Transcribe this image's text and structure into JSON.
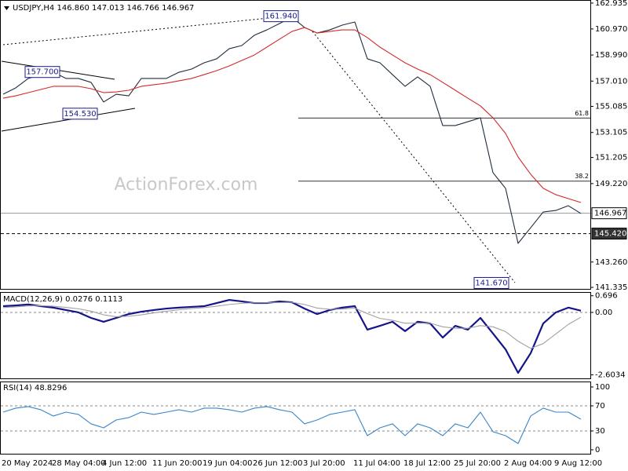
{
  "chart_data": [
    {
      "type": "line",
      "title": "USDJPY,H4  146.860 147.013 146.766 146.967",
      "watermark": "ActionForex.com",
      "ylim": [
        141.22,
        163.17
      ],
      "yticks": [
        {
          "value": 162.935,
          "label": "162.935"
        },
        {
          "value": 160.97,
          "label": "160.970"
        },
        {
          "value": 158.99,
          "label": "158.990"
        },
        {
          "value": 157.01,
          "label": "157.010"
        },
        {
          "value": 155.085,
          "label": "155.085"
        },
        {
          "value": 153.105,
          "label": "153.105"
        },
        {
          "value": 151.205,
          "label": "151.205"
        },
        {
          "value": 149.22,
          "label": "149.220"
        },
        {
          "value": 143.26,
          "label": "143.260"
        },
        {
          "value": 141.335,
          "label": "141.335"
        }
      ],
      "series": [
        {
          "color": "#1f2d3d",
          "values": [
            156.01,
            156.49,
            157.21,
            157.5,
            157.68,
            157.21,
            157.21,
            156.91,
            155.42,
            156.01,
            155.89,
            157.21,
            157.21,
            157.21,
            157.68,
            157.92,
            158.4,
            158.7,
            159.47,
            159.71,
            160.49,
            160.9,
            161.38,
            161.86,
            161.08,
            160.66,
            160.9,
            161.26,
            161.5,
            158.7,
            158.4,
            157.5,
            156.61,
            157.33,
            156.61,
            153.63,
            153.63,
            153.92,
            154.22,
            150.05,
            148.86,
            144.68,
            145.87,
            147.06,
            147.18,
            147.54,
            146.95
          ]
        },
        {
          "color": "#d42a2a",
          "values": [
            155.71,
            155.89,
            156.13,
            156.37,
            156.61,
            156.61,
            156.61,
            156.43,
            156.13,
            156.19,
            156.31,
            156.61,
            156.73,
            156.85,
            157.03,
            157.21,
            157.5,
            157.8,
            158.16,
            158.58,
            158.99,
            159.59,
            160.19,
            160.78,
            161.08,
            160.66,
            160.78,
            160.9,
            160.9,
            160.31,
            159.59,
            158.99,
            158.4,
            157.92,
            157.5,
            156.91,
            156.31,
            155.71,
            155.12,
            154.22,
            153.03,
            151.24,
            149.93,
            148.86,
            148.38,
            148.08,
            147.78
          ]
        }
      ],
      "annotations": [
        {
          "value": 161.94,
          "label": "161.940"
        },
        {
          "value": 157.7,
          "label": "157.700"
        },
        {
          "value": 154.53,
          "label": "154.530"
        },
        {
          "value": 141.67,
          "label": "141.670"
        }
      ],
      "levels": [
        {
          "ratio": 61.8,
          "value": 154.2
        },
        {
          "ratio": 38.2,
          "value": 149.41
        }
      ],
      "price_lines": [
        {
          "value": 146.967,
          "label": "146.967",
          "style": "solid"
        },
        {
          "value": 145.42,
          "label": "145.420",
          "style": "dashed"
        }
      ]
    },
    {
      "type": "line",
      "title": "MACD(12,26,9) 0.0276 0.1113",
      "ylim": [
        -2.75,
        0.85
      ],
      "yticks": [
        0.696,
        {
          "value": 0,
          "label": "0.00"
        },
        -2.6034
      ],
      "zero_line": 0,
      "series": [
        {
          "color": "#14148c",
          "values": [
            0.26,
            0.29,
            0.33,
            0.26,
            0.2,
            0.1,
            0,
            -0.23,
            -0.39,
            -0.23,
            -0.07,
            0.03,
            0.1,
            0.16,
            0.2,
            0.23,
            0.26,
            0.39,
            0.52,
            0.46,
            0.39,
            0.39,
            0.46,
            0.42,
            0.16,
            -0.07,
            0.1,
            0.2,
            0.26,
            -0.72,
            -0.56,
            -0.39,
            -0.78,
            -0.39,
            -0.46,
            -1.05,
            -0.56,
            -0.72,
            -0.23,
            -0.88,
            -1.54,
            -2.52,
            -1.7,
            -0.46,
            0,
            0.2,
            0.07
          ]
        },
        {
          "color": "#a0a0a0",
          "values": [
            0.2,
            0.23,
            0.27,
            0.28,
            0.26,
            0.21,
            0.15,
            0.05,
            -0.1,
            -0.18,
            -0.16,
            -0.1,
            -0.02,
            0.05,
            0.11,
            0.16,
            0.2,
            0.26,
            0.33,
            0.38,
            0.4,
            0.4,
            0.41,
            0.42,
            0.33,
            0.18,
            0.13,
            0.14,
            0.18,
            -0.05,
            -0.25,
            -0.33,
            -0.45,
            -0.45,
            -0.45,
            -0.6,
            -0.66,
            -0.66,
            -0.55,
            -0.6,
            -0.8,
            -1.2,
            -1.5,
            -1.3,
            -0.9,
            -0.5,
            -0.2
          ]
        }
      ]
    },
    {
      "type": "line",
      "title": "RSI(14) 48.8296",
      "ylim": [
        -6.25,
        108.75
      ],
      "yticks": [
        100,
        70,
        30,
        0
      ],
      "dashed_levels": [
        70,
        30
      ],
      "categories": [
        "20 May 2024",
        null,
        null,
        null,
        "28 May 04:00",
        null,
        null,
        null,
        "4 Jun 12:00",
        null,
        null,
        null,
        "11 Jun 20:00",
        null,
        null,
        null,
        "19 Jun 04:00",
        null,
        null,
        null,
        "26 Jun 12:00",
        null,
        null,
        null,
        "3 Jul 20:00",
        null,
        null,
        null,
        "11 Jul 04:00",
        null,
        null,
        null,
        "18 Jul 12:00",
        null,
        null,
        null,
        "25 Jul 20:00",
        null,
        null,
        null,
        "2 Aug 04:00",
        null,
        null,
        null,
        "9 Aug 12:00",
        null,
        null
      ],
      "series": [
        {
          "color": "#3b86c8",
          "values": [
            60,
            66.3,
            68.8,
            63.8,
            53.8,
            60,
            56.3,
            41.3,
            35,
            47.5,
            51.3,
            60,
            56.3,
            60,
            63.8,
            60,
            66.3,
            66.3,
            63.8,
            60,
            66.3,
            68.8,
            63.8,
            60,
            41.3,
            47.5,
            56.3,
            60,
            63.8,
            22.5,
            35,
            41.3,
            22.5,
            41.3,
            35,
            22.5,
            41.3,
            35,
            60,
            28.8,
            22.5,
            10,
            53.8,
            66.3,
            60,
            60,
            48.8
          ]
        }
      ]
    }
  ]
}
